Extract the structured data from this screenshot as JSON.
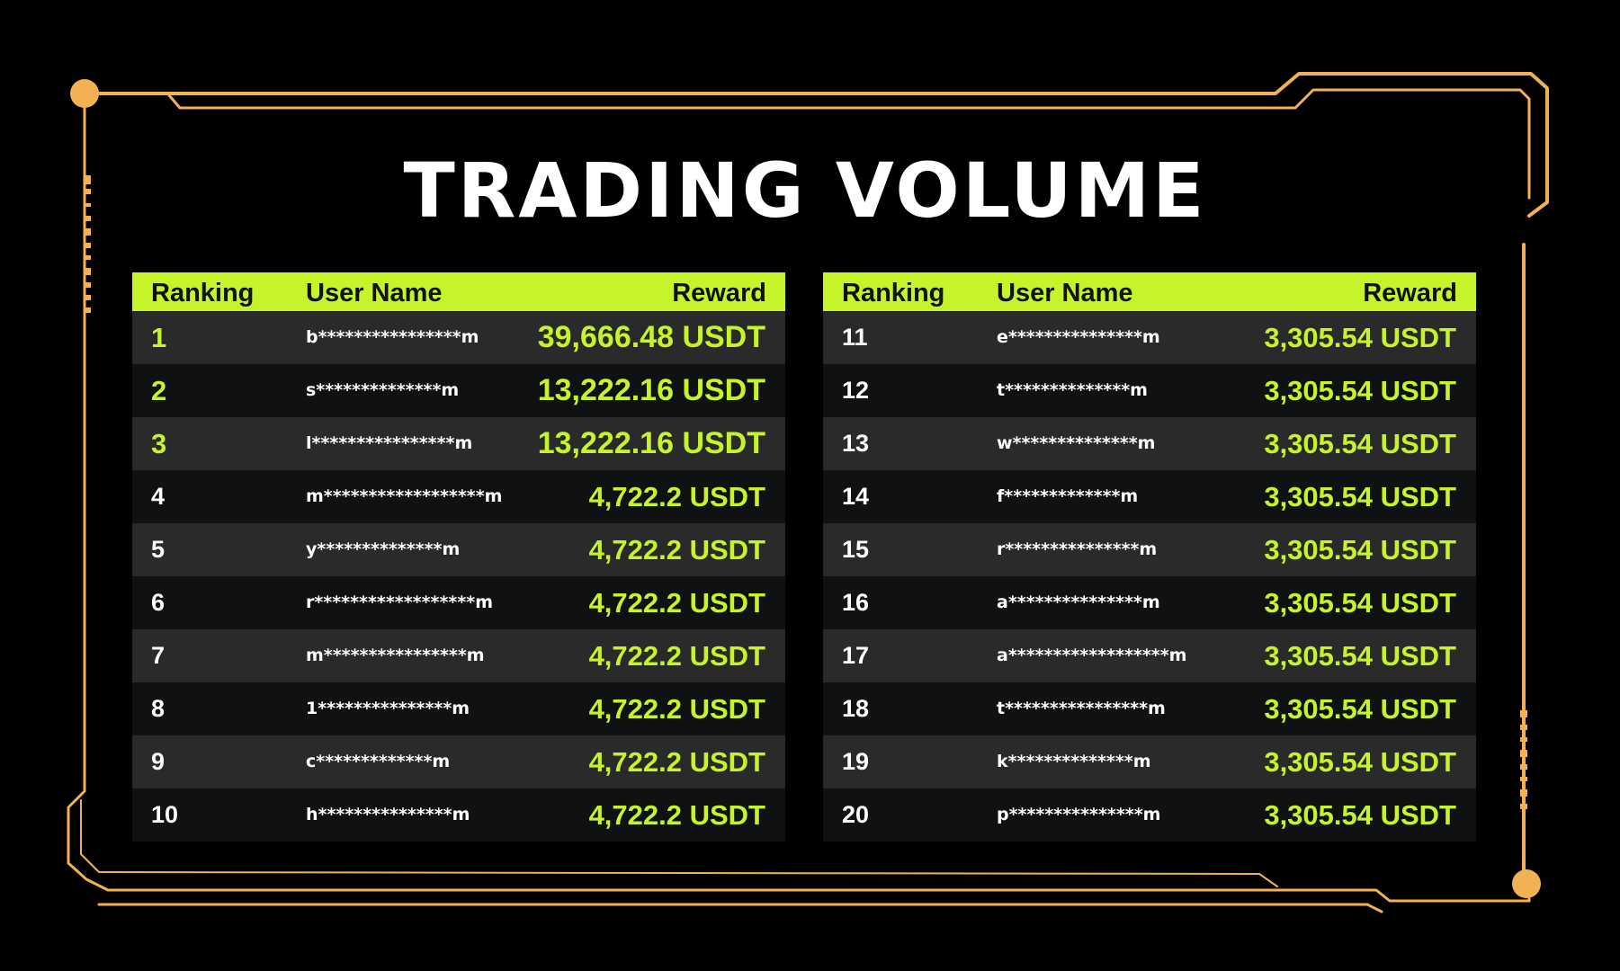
{
  "title": "TRADING VOLUME",
  "colors": {
    "accent": "#c6f42a",
    "frame": "#f2b253",
    "background": "#000000"
  },
  "columns": {
    "ranking": "Ranking",
    "user_name": "User Name",
    "reward": "Reward"
  },
  "left_board": [
    {
      "rank": "1",
      "user": "b****************m",
      "reward": "39,666.48 USDT"
    },
    {
      "rank": "2",
      "user": "s**************m",
      "reward": "13,222.16 USDT"
    },
    {
      "rank": "3",
      "user": "l****************m",
      "reward": "13,222.16 USDT"
    },
    {
      "rank": "4",
      "user": "m******************m",
      "reward": "4,722.2 USDT"
    },
    {
      "rank": "5",
      "user": "y**************m",
      "reward": "4,722.2 USDT"
    },
    {
      "rank": "6",
      "user": "r******************m",
      "reward": "4,722.2 USDT"
    },
    {
      "rank": "7",
      "user": "m****************m",
      "reward": "4,722.2 USDT"
    },
    {
      "rank": "8",
      "user": "1***************m",
      "reward": "4,722.2 USDT"
    },
    {
      "rank": "9",
      "user": "c*************m",
      "reward": "4,722.2 USDT"
    },
    {
      "rank": "10",
      "user": "h***************m",
      "reward": "4,722.2 USDT"
    }
  ],
  "right_board": [
    {
      "rank": "11",
      "user": "e***************m",
      "reward": "3,305.54 USDT"
    },
    {
      "rank": "12",
      "user": "t**************m",
      "reward": "3,305.54 USDT"
    },
    {
      "rank": "13",
      "user": "w**************m",
      "reward": "3,305.54 USDT"
    },
    {
      "rank": "14",
      "user": "f*************m",
      "reward": "3,305.54 USDT"
    },
    {
      "rank": "15",
      "user": "r***************m",
      "reward": "3,305.54 USDT"
    },
    {
      "rank": "16",
      "user": "a***************m",
      "reward": "3,305.54 USDT"
    },
    {
      "rank": "17",
      "user": "a******************m",
      "reward": "3,305.54 USDT"
    },
    {
      "rank": "18",
      "user": "t****************m",
      "reward": "3,305.54 USDT"
    },
    {
      "rank": "19",
      "user": "k**************m",
      "reward": "3,305.54 USDT"
    },
    {
      "rank": "20",
      "user": "p***************m",
      "reward": "3,305.54 USDT"
    }
  ]
}
